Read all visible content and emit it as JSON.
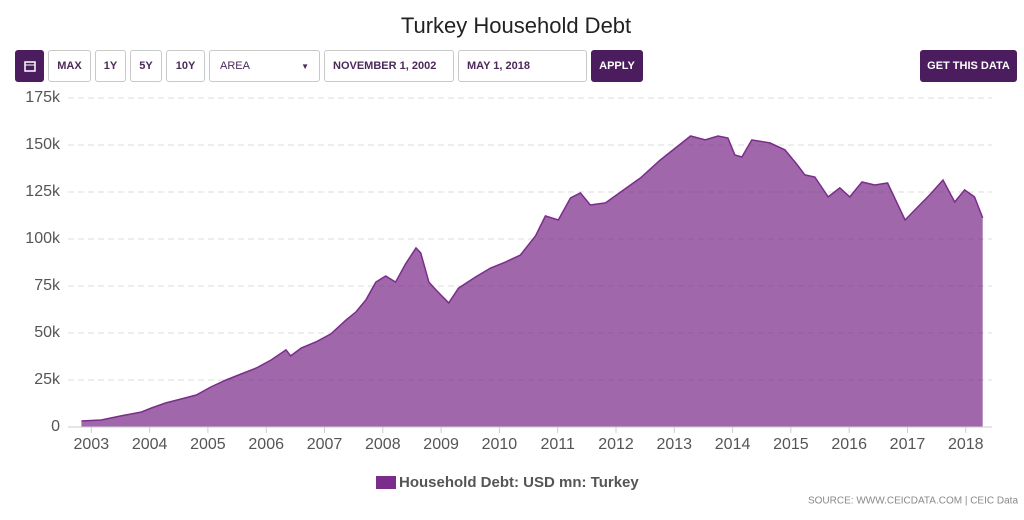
{
  "toolbar": {
    "buttons": [
      "MAX",
      "1Y",
      "5Y",
      "10Y"
    ],
    "chart_type": "AREA",
    "start_date": "NOVEMBER 1, 2002",
    "end_date": "MAY 1, 2018",
    "apply": "APPLY",
    "get_data": "GET THIS DATA"
  },
  "source": "SOURCE: WWW.CEICDATA.COM | CEIC Data",
  "chart_data": {
    "type": "area",
    "title": "Turkey Household Debt",
    "x": [
      2002.83,
      2003.17,
      2003.51,
      2003.86,
      2004.03,
      2004.28,
      2004.54,
      2004.8,
      2005.05,
      2005.31,
      2005.57,
      2005.83,
      2006.08,
      2006.34,
      2006.42,
      2006.6,
      2006.85,
      2007.11,
      2007.37,
      2007.54,
      2007.71,
      2007.88,
      2008.05,
      2008.22,
      2008.39,
      2008.57,
      2008.65,
      2008.79,
      2008.91,
      2009.13,
      2009.3,
      2009.59,
      2009.85,
      2010.11,
      2010.36,
      2010.62,
      2010.79,
      2011.01,
      2011.22,
      2011.39,
      2011.56,
      2011.82,
      2012.08,
      2012.42,
      2012.76,
      2013.02,
      2013.28,
      2013.53,
      2013.75,
      2013.92,
      2014.04,
      2014.16,
      2014.33,
      2014.64,
      2014.9,
      2015.11,
      2015.24,
      2015.41,
      2015.64,
      2015.84,
      2016.01,
      2016.22,
      2016.44,
      2016.66,
      2016.96,
      2017.21,
      2017.38,
      2017.61,
      2017.81,
      2017.98,
      2018.15,
      2018.29
    ],
    "series": [
      {
        "name": "Household Debt: USD mn: Turkey",
        "color": "#7b2d8b",
        "values": [
          3200,
          3700,
          5900,
          8000,
          10100,
          12800,
          14900,
          17000,
          21300,
          25000,
          28200,
          31400,
          35600,
          41000,
          37800,
          42000,
          45200,
          49500,
          56900,
          61200,
          67600,
          77100,
          80300,
          77100,
          86700,
          95200,
          92600,
          77100,
          72900,
          66000,
          73900,
          79800,
          84600,
          87800,
          91500,
          101600,
          112300,
          110100,
          121800,
          124500,
          118100,
          119200,
          125000,
          132500,
          142000,
          148400,
          154800,
          152700,
          154800,
          153700,
          144700,
          143600,
          152700,
          151100,
          147400,
          139400,
          134100,
          133000,
          122400,
          127200,
          122400,
          130300,
          128700,
          129800,
          110100,
          118100,
          123400,
          131400,
          119700,
          126100,
          122400,
          111200
        ]
      }
    ],
    "xlim": [
      2002.6,
      2018.45
    ],
    "xticks": [
      2003,
      2004,
      2005,
      2006,
      2007,
      2008,
      2009,
      2010,
      2011,
      2012,
      2013,
      2014,
      2015,
      2016,
      2017,
      2018
    ],
    "ylim": [
      0,
      175000
    ],
    "yticks": [
      0,
      {
        "value": 25000,
        "label": "25k"
      },
      {
        "value": 50000,
        "label": "50k"
      },
      {
        "value": 75000,
        "label": "75k"
      },
      {
        "value": 100000,
        "label": "100k"
      },
      {
        "value": 125000,
        "label": "125k"
      },
      {
        "value": 150000,
        "label": "150k"
      },
      {
        "value": 175000,
        "label": "175k"
      }
    ],
    "grid": true
  }
}
